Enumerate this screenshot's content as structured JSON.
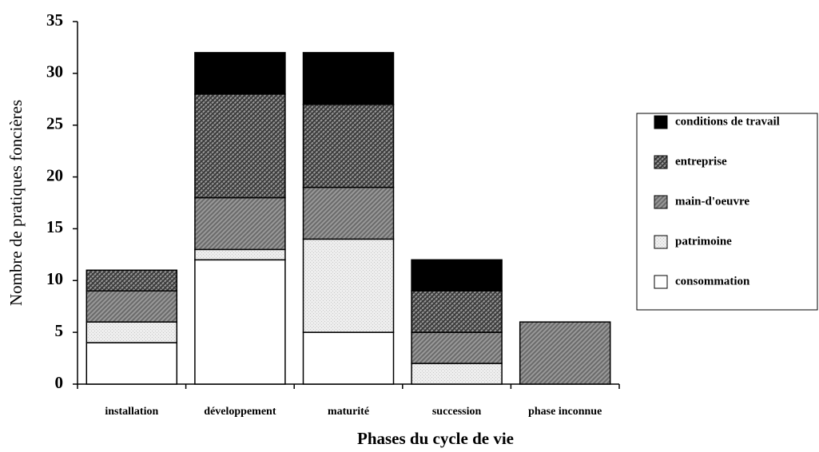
{
  "chart_data": {
    "type": "stacked_bar",
    "x_label": "Phases du cycle de vie",
    "y_label": "Nombre de pratiques foncières",
    "categories": [
      "installation",
      "développement",
      "maturité",
      "succession",
      "phase inconnue"
    ],
    "series": [
      {
        "name": "consommation",
        "color": "#ffffff",
        "values": [
          4,
          12,
          5,
          0,
          0
        ]
      },
      {
        "name": "patrimoine",
        "color": "#c8c8c8",
        "values": [
          2,
          1,
          9,
          2,
          0
        ]
      },
      {
        "name": "main-d'oeuvre",
        "color": "#6a6a6a",
        "values": [
          3,
          5,
          5,
          3,
          6
        ]
      },
      {
        "name": "entreprise",
        "color": "#3a3a3a",
        "values": [
          2,
          10,
          8,
          4,
          0
        ]
      },
      {
        "name": "conditions de travail",
        "color": "#000000",
        "values": [
          0,
          4,
          5,
          3,
          0
        ]
      }
    ],
    "ylim": [
      0,
      35
    ],
    "yticks": [
      0,
      5,
      10,
      15,
      20,
      25,
      30,
      35
    ]
  }
}
